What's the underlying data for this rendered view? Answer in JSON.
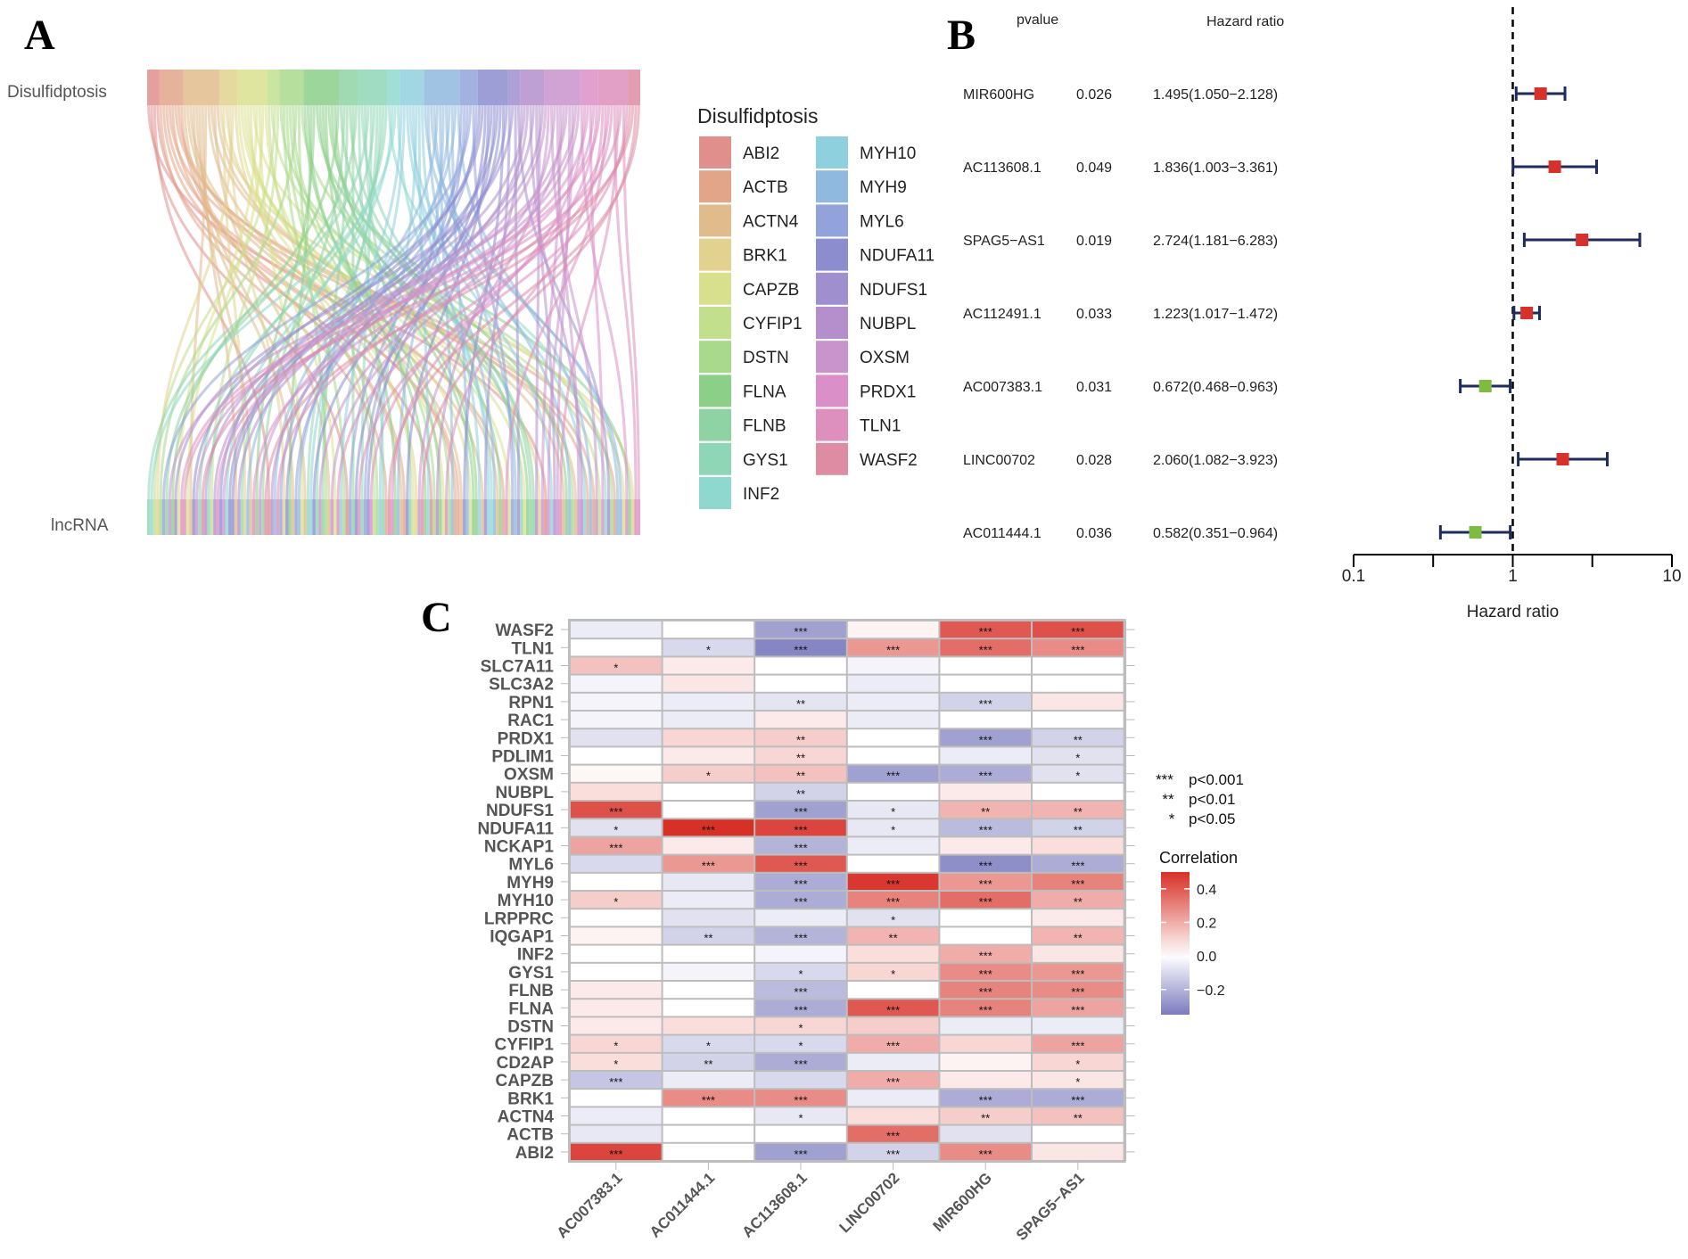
{
  "panels": {
    "a": "A",
    "b": "B",
    "c": "C"
  },
  "chart_data": [
    {
      "type": "sankey",
      "panel": "A",
      "top_label": "Disulfidptosis",
      "bottom_label": "lncRNA",
      "legend_title": "Disulfidptosis",
      "legend": [
        {
          "name": "ABI2",
          "color": "#e08f8c"
        },
        {
          "name": "ACTB",
          "color": "#e3a589"
        },
        {
          "name": "ACTN4",
          "color": "#e0bc8c"
        },
        {
          "name": "BRK1",
          "color": "#e1d28f"
        },
        {
          "name": "CAPZB",
          "color": "#d9e08d"
        },
        {
          "name": "CYFIP1",
          "color": "#c2df8e"
        },
        {
          "name": "DSTN",
          "color": "#a9d98c"
        },
        {
          "name": "FLNA",
          "color": "#8ccf88"
        },
        {
          "name": "FLNB",
          "color": "#8fd3a4"
        },
        {
          "name": "GYS1",
          "color": "#8fd6b7"
        },
        {
          "name": "INF2",
          "color": "#8fd8cf"
        },
        {
          "name": "MYH10",
          "color": "#8fd0de"
        },
        {
          "name": "MYH9",
          "color": "#8fb9de"
        },
        {
          "name": "MYL6",
          "color": "#92a3db"
        },
        {
          "name": "NDUFA11",
          "color": "#8c8dcf"
        },
        {
          "name": "NDUFS1",
          "color": "#a08fcf"
        },
        {
          "name": "NUBPL",
          "color": "#b48fcc"
        },
        {
          "name": "OXSM",
          "color": "#c993cc"
        },
        {
          "name": "PRDX1",
          "color": "#db8fc8"
        },
        {
          "name": "TLN1",
          "color": "#dd8fbd"
        },
        {
          "name": "WASF2",
          "color": "#dd8ca4"
        }
      ]
    },
    {
      "type": "forest",
      "panel": "B",
      "headers": {
        "pvalue": "pvalue",
        "hr": "Hazard ratio"
      },
      "xlabel": "Hazard ratio",
      "xscale": "log",
      "xlim": [
        0.1,
        10
      ],
      "ticks": [
        "0.1",
        "1",
        "10"
      ],
      "reference": 1,
      "rows": [
        {
          "gene": "MIR600HG",
          "pvalue": "0.026",
          "hr_text": "1.495(1.050−2.128)",
          "hr": 1.495,
          "lo": 1.05,
          "hi": 2.128
        },
        {
          "gene": "AC113608.1",
          "pvalue": "0.049",
          "hr_text": "1.836(1.003−3.361)",
          "hr": 1.836,
          "lo": 1.003,
          "hi": 3.361
        },
        {
          "gene": "SPAG5−AS1",
          "pvalue": "0.019",
          "hr_text": "2.724(1.181−6.283)",
          "hr": 2.724,
          "lo": 1.181,
          "hi": 6.283
        },
        {
          "gene": "AC112491.1",
          "pvalue": "0.033",
          "hr_text": "1.223(1.017−1.472)",
          "hr": 1.223,
          "lo": 1.017,
          "hi": 1.472
        },
        {
          "gene": "AC007383.1",
          "pvalue": "0.031",
          "hr_text": "0.672(0.468−0.963)",
          "hr": 0.672,
          "lo": 0.468,
          "hi": 0.963
        },
        {
          "gene": "LINC00702",
          "pvalue": "0.028",
          "hr_text": "2.060(1.082−3.923)",
          "hr": 2.06,
          "lo": 1.082,
          "hi": 3.923
        },
        {
          "gene": "AC011444.1",
          "pvalue": "0.036",
          "hr_text": "0.582(0.351−0.964)",
          "hr": 0.582,
          "lo": 0.351,
          "hi": 0.964
        }
      ],
      "colors": {
        "risk": "#d7312b",
        "protective": "#7dbb42",
        "ci": "#1f2b5e"
      }
    },
    {
      "type": "heatmap",
      "panel": "C",
      "columns": [
        "AC007383.1",
        "AC011444.1",
        "AC113608.1",
        "LINC00702",
        "MIR600HG",
        "SPAG5−AS1"
      ],
      "rows": [
        "WASF2",
        "TLN1",
        "SLC7A11",
        "SLC3A2",
        "RPN1",
        "RAC1",
        "PRDX1",
        "PDLIM1",
        "OXSM",
        "NUBPL",
        "NDUFS1",
        "NDUFA11",
        "NCKAP1",
        "MYL6",
        "MYH9",
        "MYH10",
        "LRPPRC",
        "IQGAP1",
        "INF2",
        "GYS1",
        "FLNB",
        "FLNA",
        "DSTN",
        "CYFIP1",
        "CD2AP",
        "CAPZB",
        "BRK1",
        "ACTN4",
        "ACTB",
        "ABI2"
      ],
      "values": [
        [
          -0.05,
          0.0,
          -0.25,
          0.03,
          0.4,
          0.42
        ],
        [
          0.0,
          -0.1,
          -0.32,
          0.25,
          0.35,
          0.28
        ],
        [
          0.15,
          0.05,
          0.0,
          -0.03,
          0.0,
          0.0
        ],
        [
          -0.03,
          0.06,
          0.0,
          -0.05,
          0.0,
          0.0
        ],
        [
          -0.03,
          -0.05,
          -0.07,
          -0.05,
          -0.12,
          0.06
        ],
        [
          -0.03,
          -0.05,
          0.05,
          -0.05,
          0.0,
          0.0
        ],
        [
          -0.08,
          0.1,
          0.12,
          0.0,
          -0.25,
          -0.12
        ],
        [
          0.0,
          0.05,
          0.1,
          0.0,
          -0.05,
          -0.08
        ],
        [
          0.02,
          0.12,
          0.15,
          -0.25,
          -0.22,
          -0.08
        ],
        [
          0.08,
          0.0,
          -0.12,
          0.0,
          0.05,
          0.0
        ],
        [
          0.42,
          0.0,
          -0.25,
          -0.06,
          0.18,
          0.18
        ],
        [
          -0.08,
          0.5,
          0.45,
          -0.06,
          -0.18,
          -0.12
        ],
        [
          0.22,
          0.05,
          -0.2,
          -0.05,
          0.05,
          0.08
        ],
        [
          -0.1,
          0.25,
          0.4,
          0.0,
          -0.3,
          -0.22
        ],
        [
          0.0,
          -0.06,
          -0.22,
          0.48,
          0.25,
          0.3
        ],
        [
          0.12,
          -0.05,
          -0.22,
          0.3,
          0.35,
          0.2
        ],
        [
          0.0,
          -0.08,
          -0.05,
          -0.08,
          0.0,
          0.05
        ],
        [
          0.03,
          -0.12,
          -0.2,
          0.18,
          0.0,
          0.18
        ],
        [
          0.0,
          0.0,
          -0.03,
          0.08,
          0.2,
          0.06
        ],
        [
          0.0,
          -0.03,
          -0.1,
          0.1,
          0.28,
          0.25
        ],
        [
          0.05,
          0.0,
          -0.18,
          0.0,
          0.3,
          0.28
        ],
        [
          0.05,
          0.0,
          -0.22,
          0.4,
          0.3,
          0.22
        ],
        [
          0.05,
          0.08,
          0.1,
          0.12,
          -0.05,
          -0.05
        ],
        [
          0.1,
          -0.1,
          -0.1,
          0.2,
          0.1,
          0.22
        ],
        [
          0.08,
          -0.12,
          -0.22,
          -0.05,
          0.03,
          0.1
        ],
        [
          -0.15,
          -0.05,
          -0.1,
          0.2,
          0.05,
          0.06
        ],
        [
          0.0,
          0.28,
          0.28,
          -0.05,
          -0.22,
          -0.22
        ],
        [
          -0.05,
          0.0,
          -0.06,
          0.08,
          0.12,
          0.15
        ],
        [
          -0.06,
          0.0,
          0.0,
          0.35,
          -0.08,
          0.0
        ],
        [
          0.45,
          0.0,
          -0.25,
          -0.12,
          0.28,
          0.06
        ]
      ],
      "stars": [
        [
          "",
          "",
          "***",
          "",
          "***",
          "***"
        ],
        [
          "",
          "*",
          "***",
          "***",
          "***",
          "***"
        ],
        [
          "*",
          "",
          "",
          "",
          "",
          ""
        ],
        [
          "",
          "",
          "",
          "",
          "",
          ""
        ],
        [
          "",
          "",
          "**",
          "",
          "***",
          ""
        ],
        [
          "",
          "",
          "",
          "",
          "",
          ""
        ],
        [
          "",
          "",
          "**",
          "",
          "***",
          "**"
        ],
        [
          "",
          "",
          "**",
          "",
          "",
          "*"
        ],
        [
          "",
          "*",
          "**",
          "***",
          "***",
          "*"
        ],
        [
          "",
          "",
          "**",
          "",
          "",
          ""
        ],
        [
          "***",
          "",
          "***",
          "*",
          "**",
          "**"
        ],
        [
          "*",
          "***",
          "***",
          "*",
          "***",
          "**"
        ],
        [
          "***",
          "",
          "***",
          "",
          "",
          ""
        ],
        [
          "",
          "***",
          "***",
          "",
          "***",
          "***"
        ],
        [
          "",
          "",
          "***",
          "***",
          "***",
          "***"
        ],
        [
          "*",
          "",
          "***",
          "***",
          "***",
          "**"
        ],
        [
          "",
          "",
          "",
          "*",
          "",
          ""
        ],
        [
          "",
          "**",
          "***",
          "**",
          "",
          "**"
        ],
        [
          "",
          "",
          "",
          "",
          "***",
          ""
        ],
        [
          "",
          "",
          "*",
          "*",
          "***",
          "***"
        ],
        [
          "",
          "",
          "***",
          "",
          "***",
          "***"
        ],
        [
          "",
          "",
          "***",
          "***",
          "***",
          "***"
        ],
        [
          "",
          "",
          "*",
          "",
          "",
          ""
        ],
        [
          "*",
          "*",
          "*",
          "***",
          "",
          "***"
        ],
        [
          "*",
          "**",
          "***",
          "",
          "",
          "*"
        ],
        [
          "***",
          "",
          "",
          "***",
          "",
          "*"
        ],
        [
          "",
          "***",
          "***",
          "",
          "***",
          "***"
        ],
        [
          "",
          "",
          "*",
          "",
          "**",
          "**"
        ],
        [
          "",
          "",
          "",
          "***",
          "",
          ""
        ],
        [
          "***",
          "",
          "***",
          "***",
          "***",
          ""
        ]
      ],
      "significance_legend": [
        {
          "stars": "***",
          "label": "p<0.001"
        },
        {
          "stars": "**",
          "label": "p<0.01"
        },
        {
          "stars": "*",
          "label": "p<0.05"
        }
      ],
      "colorbar": {
        "title": "Correlation",
        "ticks": [
          "0.4",
          "0.2",
          "0.0",
          "−0.2"
        ],
        "tick_values": [
          0.4,
          0.2,
          0.0,
          -0.2
        ],
        "range": [
          -0.35,
          0.5
        ],
        "colors": {
          "high": "#d73027",
          "mid": "#ffffff",
          "low": "#7b7bbf"
        }
      }
    }
  ]
}
